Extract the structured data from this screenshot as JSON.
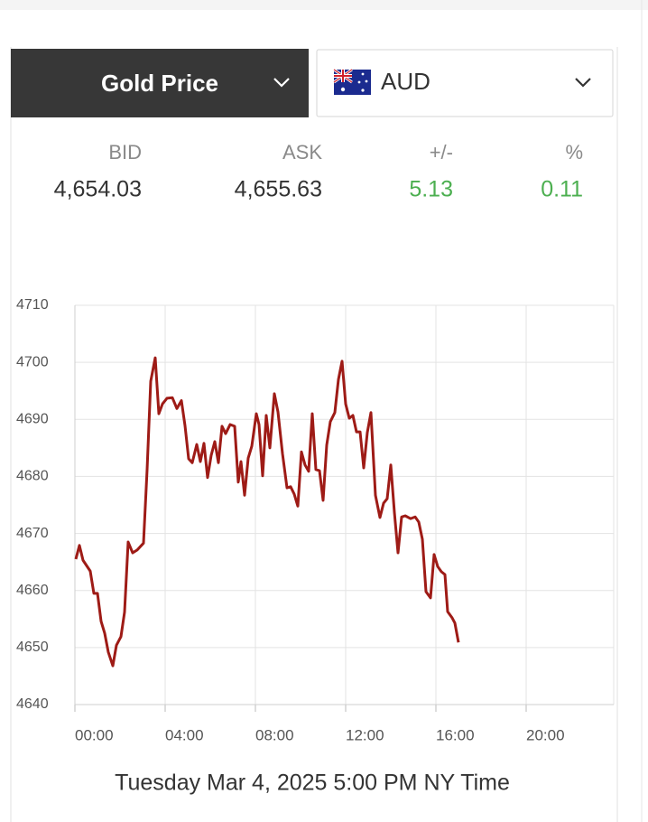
{
  "header": {
    "metal_select": "Gold Price",
    "currency_select": "AUD"
  },
  "quote": {
    "columns": [
      "BID",
      "ASK",
      "+/-",
      "%"
    ],
    "values": [
      "4,654.03",
      "4,655.63",
      "5.13",
      "0.11"
    ]
  },
  "chart_data": {
    "type": "line",
    "color": "#9e1b16",
    "grid": true,
    "xlim": [
      0,
      24
    ],
    "xticks": [
      {
        "value": 0,
        "label": "00:00"
      },
      {
        "value": 4,
        "label": "04:00"
      },
      {
        "value": 8,
        "label": "08:00"
      },
      {
        "value": 12,
        "label": "12:00"
      },
      {
        "value": 16,
        "label": "16:00"
      },
      {
        "value": 20,
        "label": "20:00"
      }
    ],
    "ylim": [
      4640,
      4710
    ],
    "yticks": [
      4640,
      4650,
      4660,
      4670,
      4680,
      4690,
      4700,
      4710
    ],
    "caption": "Tuesday Mar 4, 2025 5:00 PM NY Time",
    "x": [
      0.04,
      0.2,
      0.36,
      0.68,
      0.84,
      1.0,
      1.16,
      1.32,
      1.48,
      1.68,
      1.84,
      2.04,
      2.2,
      2.36,
      2.56,
      2.76,
      3.04,
      3.2,
      3.36,
      3.56,
      3.72,
      3.88,
      4.08,
      4.32,
      4.52,
      4.72,
      4.88,
      5.04,
      5.2,
      5.4,
      5.56,
      5.72,
      5.88,
      6.04,
      6.2,
      6.36,
      6.52,
      6.68,
      6.88,
      7.08,
      7.24,
      7.36,
      7.52,
      7.68,
      7.84,
      8.04,
      8.16,
      8.32,
      8.48,
      8.64,
      8.84,
      9.0,
      9.2,
      9.4,
      9.56,
      9.72,
      9.88,
      10.04,
      10.2,
      10.36,
      10.52,
      10.68,
      10.84,
      11.0,
      11.16,
      11.32,
      11.52,
      11.68,
      11.84,
      12.0,
      12.16,
      12.32,
      12.48,
      12.64,
      12.8,
      12.96,
      13.12,
      13.32,
      13.52,
      13.68,
      13.84,
      14.0,
      14.16,
      14.32,
      14.48,
      14.64,
      14.88,
      15.08,
      15.24,
      15.4,
      15.56,
      15.76,
      15.92,
      16.08,
      16.24,
      16.4,
      16.52,
      16.72,
      16.84,
      17.0
    ],
    "values": [
      4665.5,
      4667.9,
      4665.3,
      4663.4,
      4659.5,
      4659.5,
      4654.6,
      4652.5,
      4649.2,
      4646.8,
      4650.4,
      4651.9,
      4656.2,
      4668.5,
      4666.6,
      4667.1,
      4668.3,
      4681.2,
      4696.7,
      4700.8,
      4691.0,
      4692.7,
      4693.7,
      4693.8,
      4691.9,
      4693.3,
      4688.9,
      4683.1,
      4682.4,
      4685.6,
      4682.6,
      4685.8,
      4679.8,
      4683.7,
      4686.1,
      4682.4,
      4688.8,
      4687.5,
      4689.1,
      4688.8,
      4679.0,
      4682.6,
      4676.7,
      4683.2,
      4685.3,
      4691.0,
      4689.1,
      4680.1,
      4690.7,
      4685.0,
      4694.5,
      4691.3,
      4684.0,
      4678.0,
      4678.2,
      4676.9,
      4674.8,
      4684.3,
      4682.0,
      4680.9,
      4691.0,
      4681.2,
      4681.0,
      4675.8,
      4685.5,
      4689.6,
      4691.2,
      4697.0,
      4700.2,
      4692.7,
      4690.2,
      4690.7,
      4687.8,
      4687.8,
      4681.5,
      4687.7,
      4691.2,
      4676.7,
      4672.8,
      4675.3,
      4676.1,
      4682.0,
      4673.7,
      4666.6,
      4672.9,
      4673.1,
      4672.6,
      4672.9,
      4672.0,
      4669.0,
      4659.8,
      4658.7,
      4666.3,
      4664.2,
      4663.3,
      4662.8,
      4656.3,
      4655.2,
      4654.3,
      4650.9
    ]
  }
}
